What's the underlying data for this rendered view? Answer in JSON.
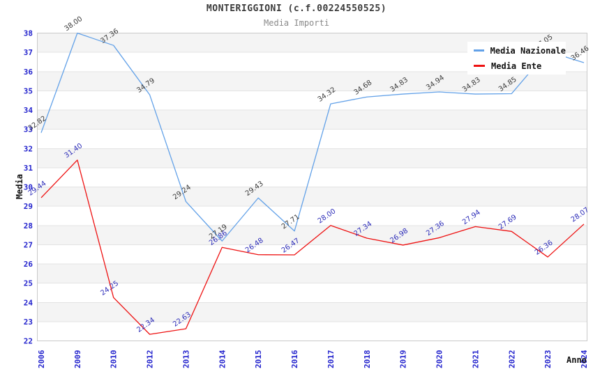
{
  "chart_data": {
    "type": "line",
    "title": "MONTERIGGIONI (c.f.00224550525)",
    "subtitle": "Media Importi",
    "xlabel": "Anno",
    "ylabel": "Media",
    "x": [
      "2006",
      "2009",
      "2010",
      "2012",
      "2013",
      "2014",
      "2015",
      "2016",
      "2017",
      "2018",
      "2019",
      "2020",
      "2021",
      "2022",
      "2023",
      "2024"
    ],
    "series": [
      {
        "name": "Media Nazionale",
        "color": "#62a1e8",
        "label_color": "#3a3a3a",
        "values": [
          32.82,
          38.0,
          37.36,
          34.79,
          29.24,
          27.19,
          29.43,
          27.71,
          34.32,
          34.68,
          34.83,
          34.94,
          34.83,
          34.85,
          37.05,
          36.46
        ]
      },
      {
        "name": "Media Ente",
        "color": "#ee1111",
        "label_color": "#2b2bb8",
        "values": [
          29.44,
          31.4,
          24.25,
          22.34,
          22.63,
          26.86,
          26.48,
          26.47,
          28.0,
          27.34,
          26.98,
          27.36,
          27.94,
          27.69,
          26.36,
          28.07
        ]
      }
    ],
    "ylim": [
      22,
      38
    ],
    "ytick_step": 1,
    "grid": "horizontal",
    "band_rows": "alternating gray from 23-24 up to 37-38",
    "legend_position": "top-right"
  },
  "palette": {
    "axis_tick_text": "#2323cd",
    "plot_border": "#c9c9c9",
    "gridline": "#e3e3e3",
    "band_fill": "#f4f4f4",
    "title_text": "#3b3b3b",
    "subtitle_text": "#8a8a8a"
  }
}
